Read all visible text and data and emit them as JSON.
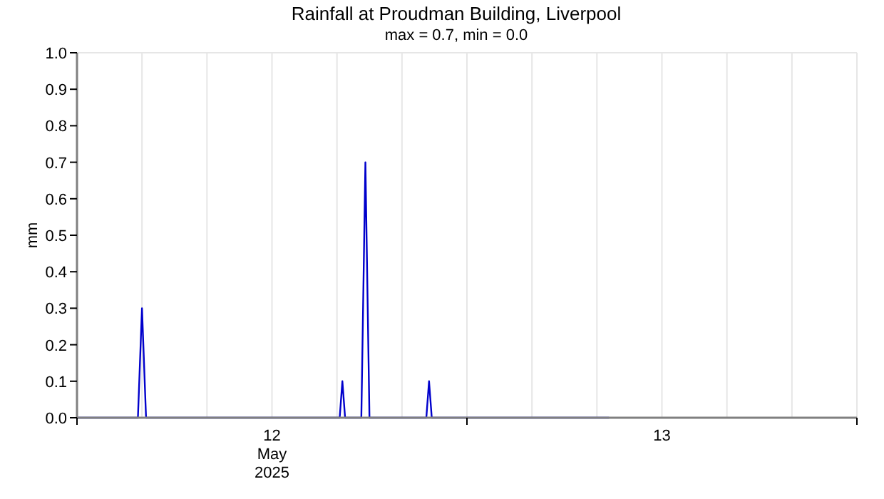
{
  "chart_data": {
    "type": "line",
    "title": "Rainfall at Proudman Building, Liverpool",
    "subtitle": "max = 0.7, min = 0.0",
    "ylabel": "mm",
    "x": [
      "2025-05-12T00:00",
      "2025-05-12T03:45",
      "2025-05-12T04:00",
      "2025-05-12T04:15",
      "2025-05-12T16:10",
      "2025-05-12T16:20",
      "2025-05-12T16:30",
      "2025-05-12T17:30",
      "2025-05-12T17:45",
      "2025-05-12T18:00",
      "2025-05-12T21:30",
      "2025-05-12T21:40",
      "2025-05-12T21:50",
      "2025-05-13T08:45"
    ],
    "series": [
      {
        "color": "#0000cc",
        "values": [
          0,
          0,
          0.3,
          0,
          0,
          0.1,
          0,
          0,
          0.7,
          0,
          0,
          0.1,
          0,
          0
        ]
      }
    ],
    "xlim": [
      "2025-05-12T00:00",
      "2025-05-14T00:00"
    ],
    "xticks": [
      {
        "value": "2025-05-12T00:00",
        "label": null
      },
      {
        "value": "2025-05-12T12:00",
        "label": "12\nMay\n2025"
      },
      {
        "value": "2025-05-13T00:00",
        "label": null
      },
      {
        "value": "2025-05-13T12:00",
        "label": "13"
      },
      {
        "value": "2025-05-14T00:00",
        "label": null
      }
    ],
    "ylim": [
      0,
      1
    ],
    "yticks": [
      {
        "value": 0,
        "label": "0.0"
      },
      0.1,
      0.2,
      0.3,
      0.4,
      0.5,
      0.6,
      0.7,
      0.8,
      0.9,
      {
        "value": 1,
        "label": "1.0"
      }
    ],
    "grid": "x",
    "marker": "none",
    "line_style": "solid"
  }
}
